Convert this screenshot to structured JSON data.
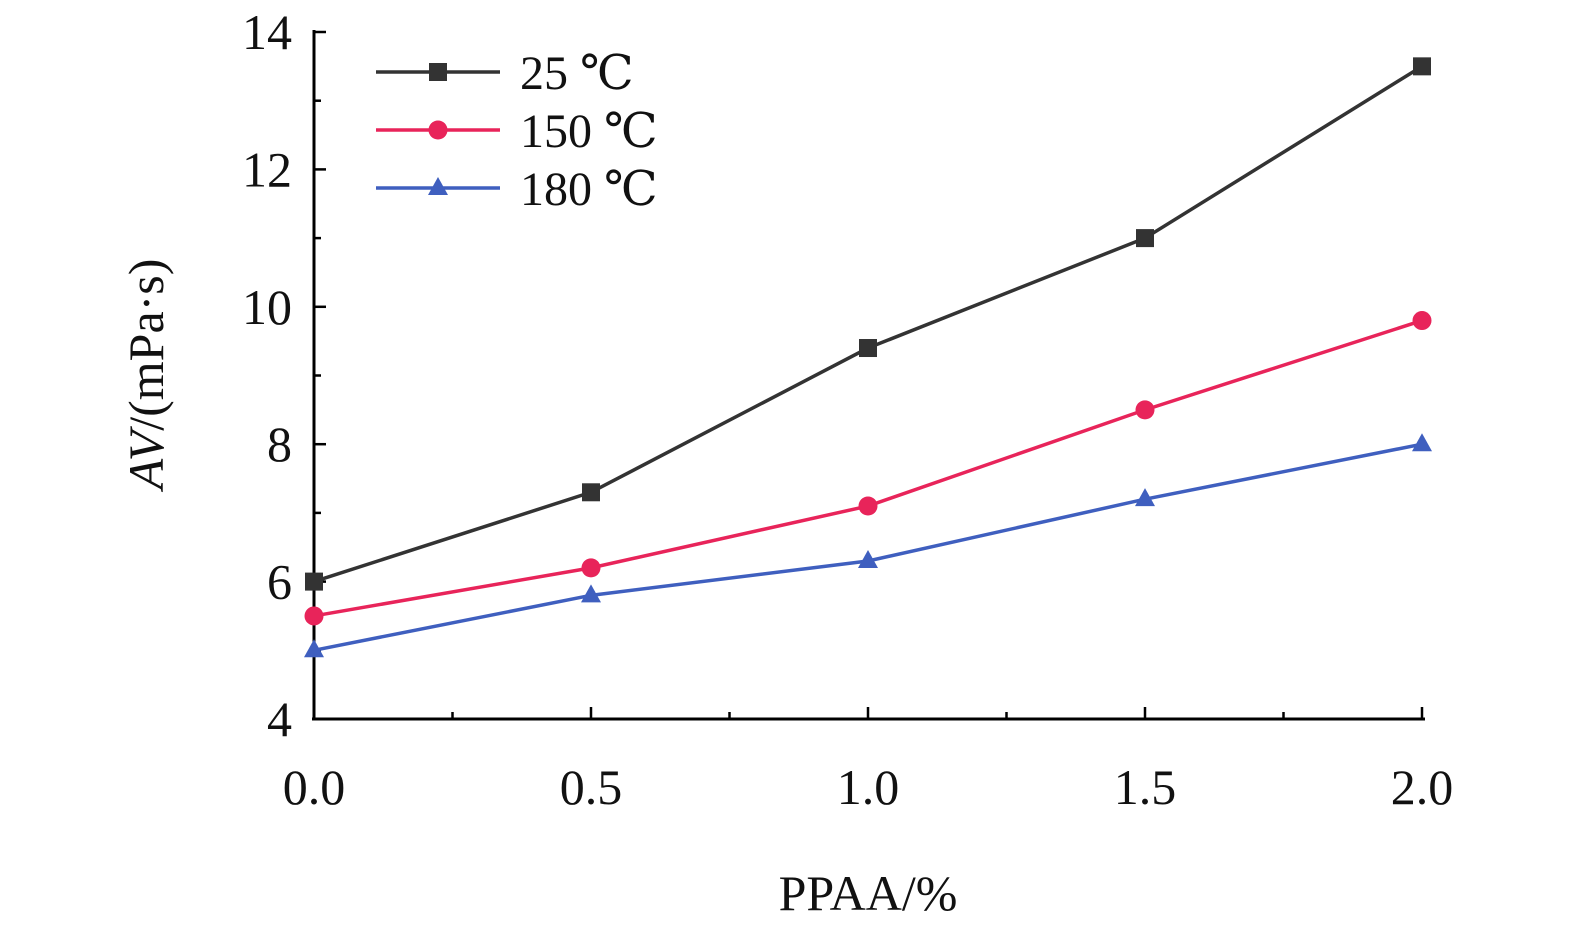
{
  "chart_data": {
    "type": "line",
    "title": "",
    "xlabel": "PPAA/%",
    "ylabel_italic": "AV",
    "ylabel_rest": "/(mPa·s)",
    "x": [
      0.0,
      0.5,
      1.0,
      1.5,
      2.0
    ],
    "x_ticks": [
      "0.0",
      "0.5",
      "1.0",
      "1.5",
      "2.0"
    ],
    "y_ticks": [
      "4",
      "6",
      "8",
      "10",
      "12",
      "14"
    ],
    "xlim": [
      0.0,
      2.0
    ],
    "ylim": [
      4,
      14
    ],
    "grid": false,
    "legend_position": "top-left",
    "series": [
      {
        "name": "25 ℃",
        "color": "#333333",
        "marker": "square",
        "values": [
          6.0,
          7.3,
          9.4,
          11.0,
          13.5
        ]
      },
      {
        "name": "150 ℃",
        "color": "#e8245a",
        "marker": "circle",
        "values": [
          5.5,
          6.2,
          7.1,
          8.5,
          9.8
        ]
      },
      {
        "name": "180 ℃",
        "color": "#3f5fbf",
        "marker": "triangle",
        "values": [
          5.0,
          5.8,
          6.3,
          7.2,
          8.0
        ]
      }
    ]
  }
}
